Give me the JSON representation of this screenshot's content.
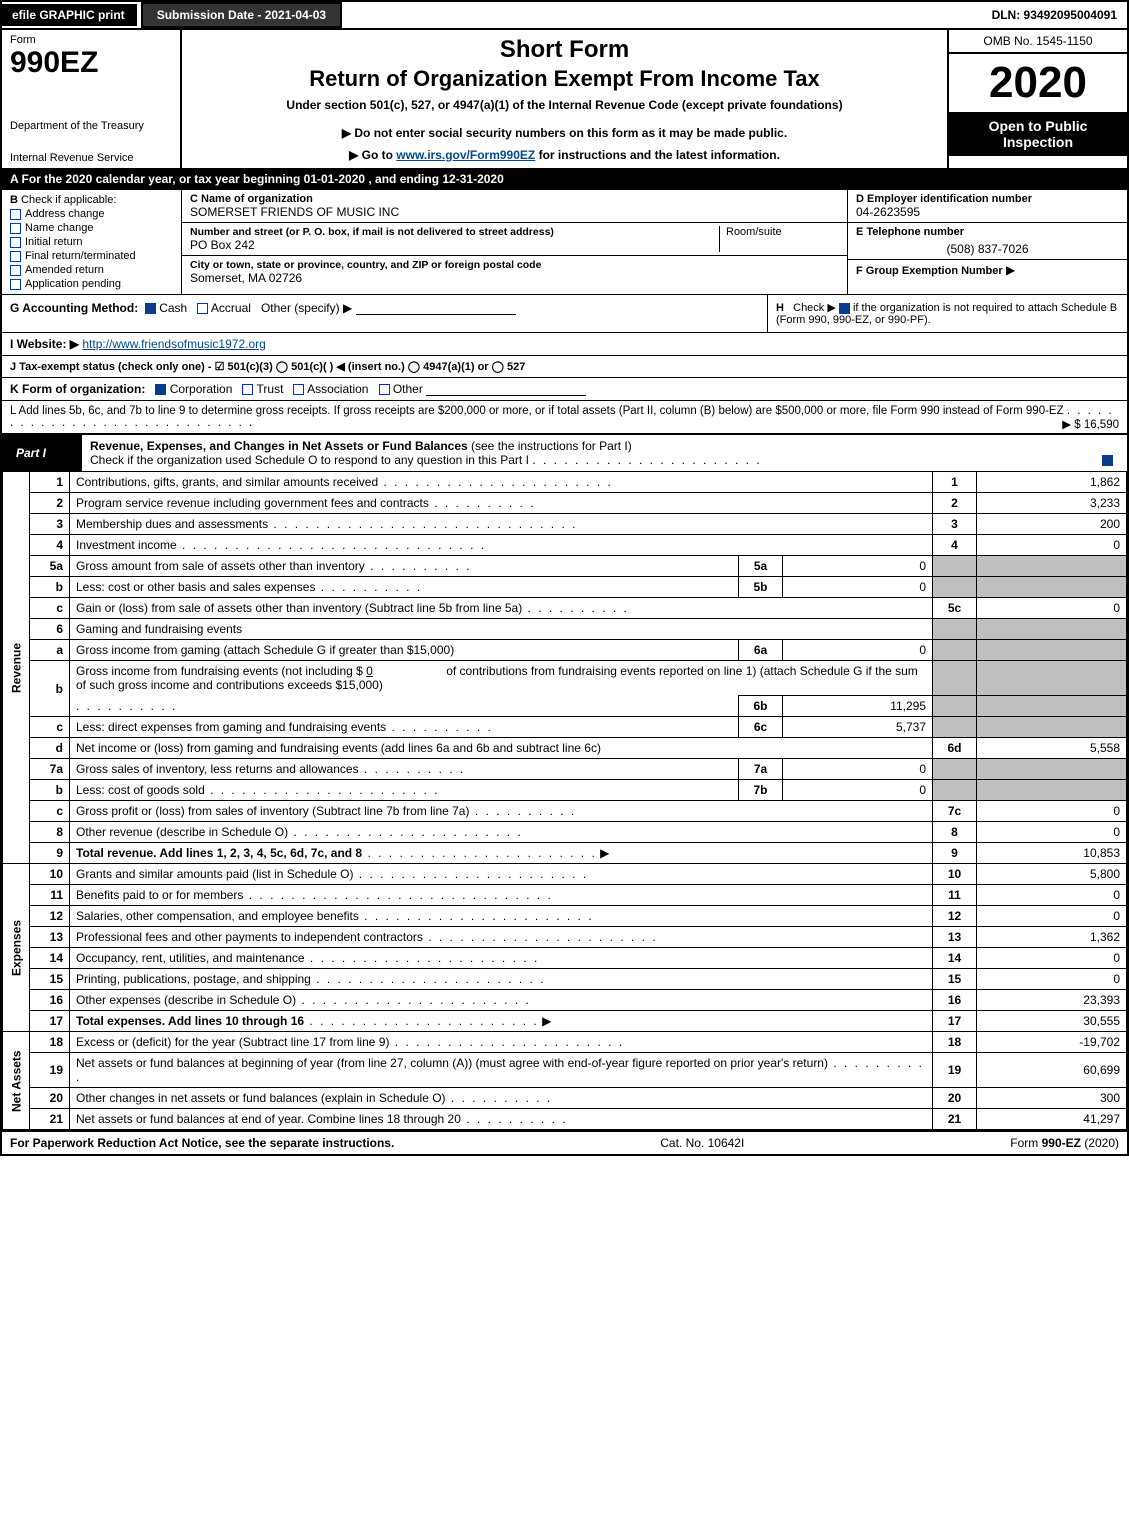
{
  "topbar": {
    "efile": "efile GRAPHIC print",
    "submission_date": "Submission Date - 2021-04-03",
    "dln": "DLN: 93492095004091"
  },
  "header": {
    "form_label": "Form",
    "form_no": "990EZ",
    "dept": "Department of the Treasury",
    "irs": "Internal Revenue Service",
    "short_form": "Short Form",
    "return_title": "Return of Organization Exempt From Income Tax",
    "under_section": "Under section 501(c), 527, or 4947(a)(1) of the Internal Revenue Code (except private foundations)",
    "notice": "▶ Do not enter social security numbers on this form as it may be made public.",
    "goto_pre": "▶ Go to ",
    "goto_link": "www.irs.gov/Form990EZ",
    "goto_post": " for instructions and the latest information.",
    "omb": "OMB No. 1545-1150",
    "year": "2020",
    "open_public": "Open to Public Inspection"
  },
  "period": "A  For the 2020 calendar year, or tax year beginning 01-01-2020 , and ending 12-31-2020",
  "section_b": {
    "label": "B",
    "check_if": "Check if applicable:",
    "items": [
      "Address change",
      "Name change",
      "Initial return",
      "Final return/terminated",
      "Amended return",
      "Application pending"
    ]
  },
  "section_c": {
    "label": "C Name of organization",
    "name": "SOMERSET FRIENDS OF MUSIC INC",
    "addr_label": "Number and street (or P. O. box, if mail is not delivered to street address)",
    "room_label": "Room/suite",
    "addr": "PO Box 242",
    "city_label": "City or town, state or province, country, and ZIP or foreign postal code",
    "city": "Somerset, MA  02726"
  },
  "section_d": {
    "label": "D Employer identification number",
    "value": "04-2623595"
  },
  "section_e": {
    "label": "E Telephone number",
    "value": "(508) 837-7026"
  },
  "section_f": {
    "label": "F Group Exemption Number",
    "arrow": "▶"
  },
  "row_g": {
    "label": "G Accounting Method:",
    "cash": "Cash",
    "accrual": "Accrual",
    "other": "Other (specify) ▶"
  },
  "row_h": {
    "label": "H",
    "text_pre": "Check ▶",
    "text_post": " if the organization is not required to attach Schedule B (Form 990, 990-EZ, or 990-PF)."
  },
  "row_i": {
    "label": "I Website: ▶",
    "url": "http://www.friendsofmusic1972.org"
  },
  "row_j": "J Tax-exempt status (check only one) - ☑ 501(c)(3)  ◯ 501(c)( ) ◀ (insert no.)  ◯ 4947(a)(1) or  ◯ 527",
  "row_k": {
    "label": "K Form of organization:",
    "corp": "Corporation",
    "trust": "Trust",
    "assoc": "Association",
    "other": "Other"
  },
  "row_l": {
    "text": "L Add lines 5b, 6c, and 7b to line 9 to determine gross receipts. If gross receipts are $200,000 or more, or if total assets (Part II, column (B) below) are $500,000 or more, file Form 990 instead of Form 990-EZ",
    "amount": "▶ $ 16,590"
  },
  "part1": {
    "tab": "Part I",
    "title": "Revenue, Expenses, and Changes in Net Assets or Fund Balances",
    "subtitle": "(see the instructions for Part I)",
    "check_line": "Check if the organization used Schedule O to respond to any question in this Part I"
  },
  "sidelabels": {
    "revenue": "Revenue",
    "expenses": "Expenses",
    "netassets": "Net Assets"
  },
  "lines": {
    "l1": {
      "desc": "Contributions, gifts, grants, and similar amounts received",
      "no": "1",
      "val": "1,862"
    },
    "l2": {
      "desc": "Program service revenue including government fees and contracts",
      "no": "2",
      "val": "3,233"
    },
    "l3": {
      "desc": "Membership dues and assessments",
      "no": "3",
      "val": "200"
    },
    "l4": {
      "desc": "Investment income",
      "no": "4",
      "val": "0"
    },
    "l5a": {
      "desc": "Gross amount from sale of assets other than inventory",
      "mno": "5a",
      "mval": "0"
    },
    "l5b": {
      "desc": "Less: cost or other basis and sales expenses",
      "mno": "5b",
      "mval": "0"
    },
    "l5c": {
      "desc": "Gain or (loss) from sale of assets other than inventory (Subtract line 5b from line 5a)",
      "no": "5c",
      "val": "0"
    },
    "l6": {
      "desc": "Gaming and fundraising events"
    },
    "l6a": {
      "desc": "Gross income from gaming (attach Schedule G if greater than $15,000)",
      "mno": "6a",
      "mval": "0"
    },
    "l6b": {
      "desc1": "Gross income from fundraising events (not including $",
      "desc_zero": "0",
      "desc2": "of contributions from fundraising events reported on line 1) (attach Schedule G if the sum of such gross income and contributions exceeds $15,000)",
      "mno": "6b",
      "mval": "11,295"
    },
    "l6c": {
      "desc": "Less: direct expenses from gaming and fundraising events",
      "mno": "6c",
      "mval": "5,737"
    },
    "l6d": {
      "desc": "Net income or (loss) from gaming and fundraising events (add lines 6a and 6b and subtract line 6c)",
      "no": "6d",
      "val": "5,558"
    },
    "l7a": {
      "desc": "Gross sales of inventory, less returns and allowances",
      "mno": "7a",
      "mval": "0"
    },
    "l7b": {
      "desc": "Less: cost of goods sold",
      "mno": "7b",
      "mval": "0"
    },
    "l7c": {
      "desc": "Gross profit or (loss) from sales of inventory (Subtract line 7b from line 7a)",
      "no": "7c",
      "val": "0"
    },
    "l8": {
      "desc": "Other revenue (describe in Schedule O)",
      "no": "8",
      "val": "0"
    },
    "l9": {
      "desc": "Total revenue. Add lines 1, 2, 3, 4, 5c, 6d, 7c, and 8",
      "no": "9",
      "val": "10,853"
    },
    "l10": {
      "desc": "Grants and similar amounts paid (list in Schedule O)",
      "no": "10",
      "val": "5,800"
    },
    "l11": {
      "desc": "Benefits paid to or for members",
      "no": "11",
      "val": "0"
    },
    "l12": {
      "desc": "Salaries, other compensation, and employee benefits",
      "no": "12",
      "val": "0"
    },
    "l13": {
      "desc": "Professional fees and other payments to independent contractors",
      "no": "13",
      "val": "1,362"
    },
    "l14": {
      "desc": "Occupancy, rent, utilities, and maintenance",
      "no": "14",
      "val": "0"
    },
    "l15": {
      "desc": "Printing, publications, postage, and shipping",
      "no": "15",
      "val": "0"
    },
    "l16": {
      "desc": "Other expenses (describe in Schedule O)",
      "no": "16",
      "val": "23,393"
    },
    "l17": {
      "desc": "Total expenses. Add lines 10 through 16",
      "no": "17",
      "val": "30,555"
    },
    "l18": {
      "desc": "Excess or (deficit) for the year (Subtract line 17 from line 9)",
      "no": "18",
      "val": "-19,702"
    },
    "l19": {
      "desc": "Net assets or fund balances at beginning of year (from line 27, column (A)) (must agree with end-of-year figure reported on prior year's return)",
      "no": "19",
      "val": "60,699"
    },
    "l20": {
      "desc": "Other changes in net assets or fund balances (explain in Schedule O)",
      "no": "20",
      "val": "300"
    },
    "l21": {
      "desc": "Net assets or fund balances at end of year. Combine lines 18 through 20",
      "no": "21",
      "val": "41,297"
    }
  },
  "footer": {
    "left": "For Paperwork Reduction Act Notice, see the separate instructions.",
    "mid": "Cat. No. 10642I",
    "right_pre": "Form ",
    "right_bold": "990-EZ",
    "right_post": " (2020)"
  },
  "colors": {
    "black": "#000000",
    "white": "#ffffff",
    "grey": "#bfbfbf",
    "link": "#004b8d",
    "checkbox_border": "#0033cc"
  }
}
